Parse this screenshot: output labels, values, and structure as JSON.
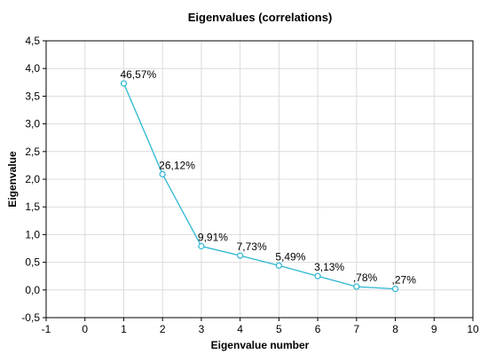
{
  "chart_data": {
    "type": "line",
    "title": "Eigenvalues (correlations)",
    "xlabel": "Eigenvalue number",
    "ylabel": "Eigenvalue",
    "xlim": [
      -1,
      10
    ],
    "ylim": [
      -0.5,
      4.5
    ],
    "x_ticks": [
      "-1",
      "0",
      "1",
      "2",
      "3",
      "4",
      "5",
      "6",
      "7",
      "8",
      "9",
      "10"
    ],
    "y_ticks": [
      "-0,5",
      "0,0",
      "0,5",
      "1,0",
      "1,5",
      "2,0",
      "2,5",
      "3,0",
      "3,5",
      "4,0",
      "4,5"
    ],
    "grid": true,
    "series": [
      {
        "x": [
          1,
          2,
          3,
          4,
          5,
          6,
          7,
          8
        ],
        "values": [
          3.73,
          2.09,
          0.79,
          0.62,
          0.44,
          0.25,
          0.06,
          0.02
        ],
        "labels": [
          "46,57%",
          "26,12%",
          "9,91%",
          "7,73%",
          "5,49%",
          "3,13%",
          ",78%",
          ",27%"
        ],
        "color": "#2bb7d1"
      }
    ]
  }
}
